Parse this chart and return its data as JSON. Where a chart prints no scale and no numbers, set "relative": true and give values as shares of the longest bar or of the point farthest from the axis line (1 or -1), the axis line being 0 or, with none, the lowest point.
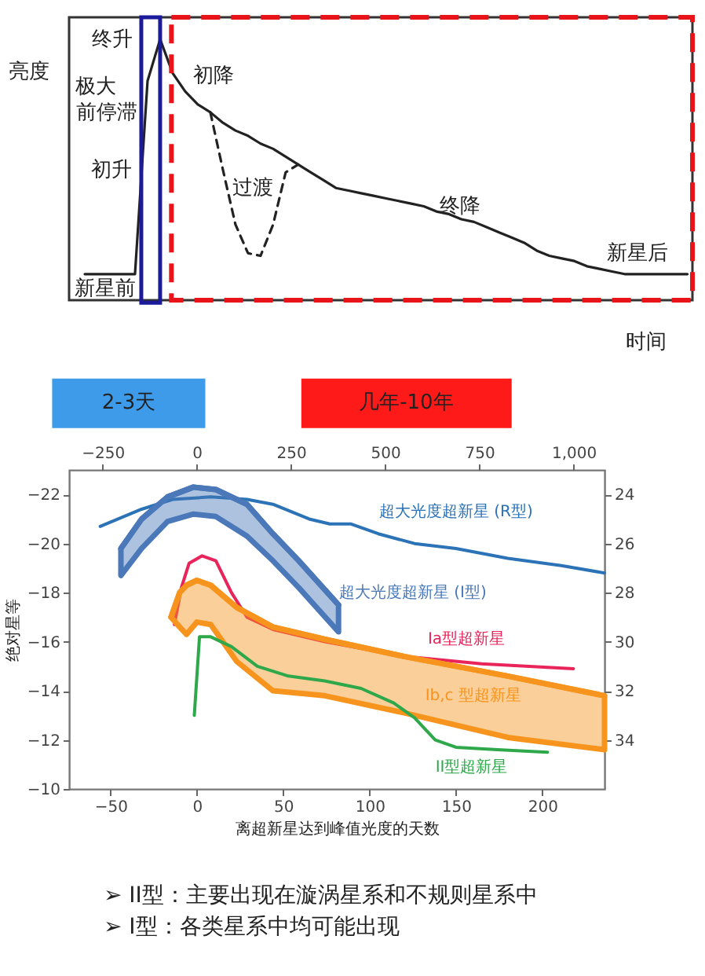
{
  "chart_data": [
    {
      "type": "line",
      "relative": true,
      "ylabel": "亮度",
      "xlabel": "时间",
      "categories": [
        null,
        null,
        null,
        null,
        null,
        null,
        null,
        null,
        null,
        null,
        null,
        null,
        null,
        null,
        null,
        null,
        null,
        null,
        null,
        null,
        null,
        null,
        null,
        null,
        null,
        null,
        null,
        null,
        null,
        null,
        null,
        null,
        null,
        null,
        null,
        null,
        null,
        null,
        null,
        null,
        null,
        null,
        null,
        null,
        null,
        null,
        null,
        null,
        null
      ],
      "series": [
        {
          "color": "#222222",
          "line_style": "solid",
          "values": [
            0.1,
            0.1,
            0.1,
            0.1,
            0.1,
            0.84,
            1.0,
            0.87,
            0.8,
            0.75,
            0.72,
            0.68,
            0.65,
            0.63,
            0.6,
            0.58,
            0.55,
            0.52,
            0.49,
            0.46,
            0.43,
            0.42,
            0.41,
            0.4,
            0.39,
            0.38,
            0.37,
            0.36,
            0.34,
            0.33,
            0.31,
            0.3,
            0.28,
            0.26,
            0.24,
            0.22,
            0.19,
            0.17,
            0.16,
            0.15,
            0.13,
            0.12,
            0.11,
            0.1,
            0.1,
            0.1,
            0.1,
            0.1,
            0.1
          ]
        },
        {
          "color": "#222222",
          "line_style": "dashed",
          "values": [
            null,
            null,
            null,
            null,
            null,
            null,
            null,
            null,
            null,
            null,
            0.72,
            0.5,
            0.29,
            0.18,
            0.17,
            0.29,
            0.49,
            0.52,
            null,
            null,
            null,
            null,
            null,
            null,
            null,
            null,
            null,
            null,
            null,
            null,
            null,
            null,
            null,
            null,
            null,
            null,
            null,
            null,
            null,
            null,
            null,
            null,
            null,
            null,
            null,
            null,
            null,
            null,
            null
          ]
        }
      ],
      "annotations": [
        "终升",
        "极大",
        "前停滞",
        "初升",
        "新星前",
        "初降",
        "过渡",
        "终降",
        "新星后",
        "2-3天",
        "几年-10年"
      ]
    },
    {
      "type": "line",
      "xlabel": "离超新星达到峰值光度的天数",
      "ylabel": "绝对星等",
      "xlim": [
        -74,
        236
      ],
      "xticks": [
        -50,
        0,
        50,
        100,
        150,
        200
      ],
      "x2lim": [
        -339,
        1082
      ],
      "x2ticks": [
        -250,
        0,
        250,
        500,
        750,
        {
          "value": 1000,
          "label": "1,000"
        }
      ],
      "ylim": [
        -10,
        -23
      ],
      "yticks": [
        -22,
        -20,
        -18,
        -16,
        -14,
        -12,
        -10
      ],
      "y2lim": [
        36,
        23
      ],
      "y2ticks": [
        24,
        26,
        28,
        30,
        32,
        34
      ],
      "series": [
        {
          "name": "超大光度超新星 (R型)",
          "color": "#2b73b6",
          "x": [
            -56,
            -32,
            -14,
            8,
            29,
            44,
            65,
            77,
            89,
            105,
            126,
            150,
            180,
            211,
            236
          ],
          "values": [
            -20.7,
            -21.4,
            -21.8,
            -21.9,
            -21.8,
            -21.6,
            -21.0,
            -20.8,
            -20.8,
            -20.4,
            -20.0,
            -19.8,
            -19.4,
            -19.1,
            -18.8
          ]
        },
        {
          "name": "超大光度超新星 (I型)",
          "color": "#4a78b8",
          "type": "line",
          "x": [
            -44,
            -32,
            -17,
            -2,
            11,
            29,
            44,
            59,
            82
          ],
          "values": [
            -19.8,
            -21.0,
            -21.9,
            -22.3,
            -22.2,
            -21.6,
            -20.4,
            -19.3,
            -17.5
          ],
          "upper": [
            -19.8,
            -21.0,
            -21.9,
            -22.3,
            -22.2,
            -21.6,
            -20.4,
            -19.3,
            -17.5
          ],
          "lower": [
            -18.7,
            -19.8,
            -20.9,
            -21.2,
            -21.1,
            -20.3,
            -19.3,
            -18.2,
            -16.4
          ]
        },
        {
          "name": "Ia型超新星",
          "color": "#e8245a",
          "x": [
            -13,
            -9,
            -4.5,
            3,
            11,
            20,
            29,
            44,
            74,
            120,
            165,
            218
          ],
          "values": [
            -16.7,
            -18.2,
            -19.2,
            -19.5,
            -19.3,
            -18.0,
            -17.0,
            -16.5,
            -16.0,
            -15.4,
            -15.1,
            -14.9
          ]
        },
        {
          "name": "Ib,c 型超新星",
          "color": "#f7941d",
          "type": "line",
          "x": [
            -15,
            -10,
            -6,
            0,
            8,
            23,
            44,
            74,
            120,
            180,
            236
          ],
          "values": [
            -17.0,
            -18.0,
            -18.3,
            -18.5,
            -18.3,
            -17.4,
            -16.6,
            -16.1,
            -15.4,
            -14.6,
            -13.8
          ],
          "upper": [
            -17.0,
            -18.0,
            -18.3,
            -18.5,
            -18.3,
            -17.4,
            -16.6,
            -16.1,
            -15.4,
            -14.6,
            -13.8
          ],
          "lower": [
            -17.0,
            -16.6,
            -16.3,
            -16.8,
            -16.7,
            -15.2,
            -14.0,
            -13.8,
            -13.1,
            -12.1,
            -11.6
          ]
        },
        {
          "name": "II型超新星",
          "color": "#2ea84a",
          "x": [
            -1.5,
            1.5,
            8,
            20,
            35,
            53,
            74,
            95,
            114,
            126,
            138,
            150,
            174,
            203
          ],
          "values": [
            -13.0,
            -16.2,
            -16.2,
            -15.8,
            -15.0,
            -14.6,
            -14.4,
            -14.1,
            -13.5,
            -12.9,
            -12.0,
            -11.7,
            -11.6,
            -11.5
          ]
        }
      ],
      "annotations": [
        "➢ II型：主要出现在漩涡星系和不规则星系中",
        "➢ I型：各类星系中均可能出现"
      ]
    }
  ]
}
